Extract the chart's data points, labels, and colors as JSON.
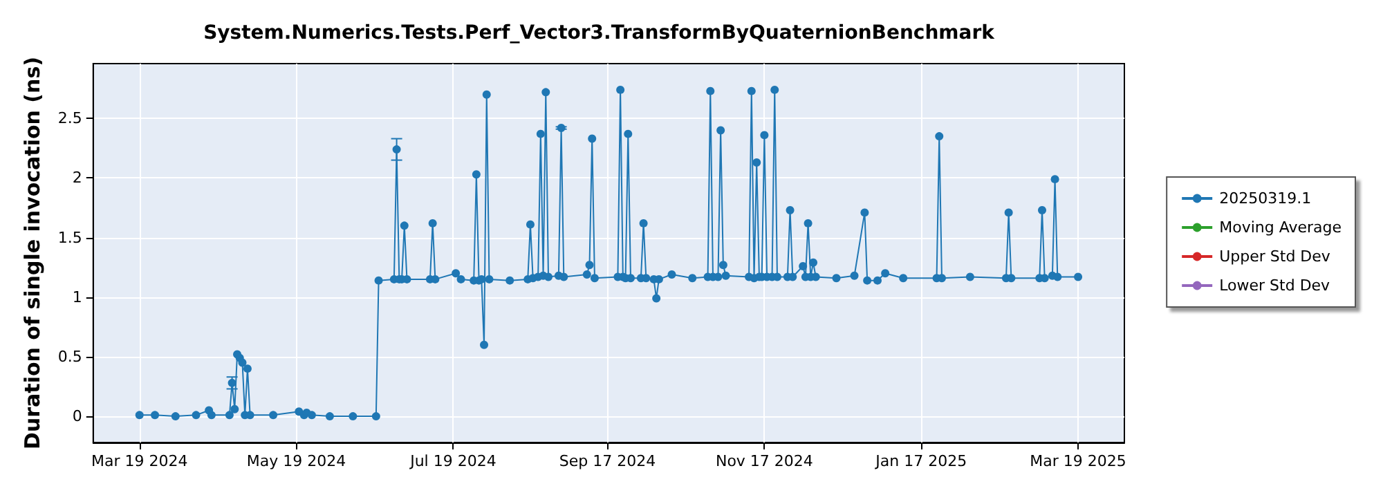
{
  "chart_data": {
    "type": "line",
    "title": "System.Numerics.Tests.Perf_Vector3.TransformByQuaternionBenchmark",
    "ylabel": "Duration of single invocation (ns)",
    "xlim": [
      "2024-03-01",
      "2025-04-06"
    ],
    "xticks": [
      {
        "value": "2024-03-19",
        "label": "Mar 19 2024"
      },
      {
        "value": "2024-05-19",
        "label": "May 19 2024"
      },
      {
        "value": "2024-07-19",
        "label": "Jul 19 2024"
      },
      {
        "value": "2024-09-17",
        "label": "Sep 17 2024"
      },
      {
        "value": "2024-11-17",
        "label": "Nov 17 2024"
      },
      {
        "value": "2025-01-17",
        "label": "Jan 17 2025"
      },
      {
        "value": "2025-03-19",
        "label": "Mar 19 2025"
      }
    ],
    "ylim": [
      -0.22,
      2.96
    ],
    "yticks": [
      0,
      0.5,
      1,
      1.5,
      2,
      2.5
    ],
    "grid": true,
    "legend": "right",
    "marker": "circle",
    "series": [
      {
        "name": "20250319.1",
        "color": "#1f77b4",
        "x": [
          "2024-03-19",
          "2024-03-25",
          "2024-04-02",
          "2024-04-10",
          "2024-04-15",
          "2024-04-16",
          "2024-04-23",
          "2024-04-24",
          "2024-04-25",
          "2024-04-26",
          "2024-04-27",
          "2024-04-28",
          "2024-04-29",
          "2024-04-30",
          "2024-05-01",
          "2024-05-10",
          "2024-05-20",
          "2024-05-22",
          "2024-05-23",
          "2024-05-25",
          "2024-06-01",
          "2024-06-10",
          "2024-06-19",
          "2024-06-20",
          "2024-06-26",
          "2024-06-27",
          "2024-06-28",
          "2024-06-29",
          "2024-06-30",
          "2024-07-01",
          "2024-07-10",
          "2024-07-11",
          "2024-07-12",
          "2024-07-20",
          "2024-07-22",
          "2024-07-27",
          "2024-07-28",
          "2024-07-29",
          "2024-07-30",
          "2024-07-31",
          "2024-08-01",
          "2024-08-02",
          "2024-08-10",
          "2024-08-17",
          "2024-08-18",
          "2024-08-19",
          "2024-08-21",
          "2024-08-22",
          "2024-08-23",
          "2024-08-24",
          "2024-08-25",
          "2024-08-29",
          "2024-08-30",
          "2024-08-31",
          "2024-09-09",
          "2024-09-10",
          "2024-09-11",
          "2024-09-12",
          "2024-09-21",
          "2024-09-22",
          "2024-09-23",
          "2024-09-24",
          "2024-09-25",
          "2024-09-26",
          "2024-09-30",
          "2024-10-01",
          "2024-10-02",
          "2024-10-05",
          "2024-10-06",
          "2024-10-07",
          "2024-10-12",
          "2024-10-20",
          "2024-10-26",
          "2024-10-27",
          "2024-10-28",
          "2024-10-30",
          "2024-10-31",
          "2024-11-01",
          "2024-11-02",
          "2024-11-11",
          "2024-11-12",
          "2024-11-13",
          "2024-11-14",
          "2024-11-15",
          "2024-11-16",
          "2024-11-17",
          "2024-11-18",
          "2024-11-20",
          "2024-11-21",
          "2024-11-22",
          "2024-11-26",
          "2024-11-27",
          "2024-11-28",
          "2024-12-02",
          "2024-12-03",
          "2024-12-04",
          "2024-12-05",
          "2024-12-06",
          "2024-12-07",
          "2024-12-15",
          "2024-12-22",
          "2024-12-26",
          "2024-12-27",
          "2024-12-31",
          "2025-01-03",
          "2025-01-10",
          "2025-01-23",
          "2025-01-24",
          "2025-01-25",
          "2025-02-05",
          "2025-02-19",
          "2025-02-20",
          "2025-02-21",
          "2025-03-04",
          "2025-03-05",
          "2025-03-06",
          "2025-03-09",
          "2025-03-10",
          "2025-03-11",
          "2025-03-19"
        ],
        "values": [
          0.01,
          0.01,
          0.0,
          0.01,
          0.05,
          0.01,
          0.01,
          0.28,
          0.06,
          0.52,
          0.49,
          0.45,
          0.01,
          0.4,
          0.01,
          0.01,
          0.04,
          0.01,
          0.03,
          0.01,
          0.0,
          0.0,
          0.0,
          1.14,
          1.15,
          2.24,
          1.15,
          1.15,
          1.6,
          1.15,
          1.15,
          1.62,
          1.15,
          1.2,
          1.15,
          1.14,
          2.03,
          1.14,
          1.15,
          0.6,
          2.7,
          1.15,
          1.14,
          1.15,
          1.61,
          1.16,
          1.17,
          2.37,
          1.18,
          2.72,
          1.17,
          1.18,
          2.42,
          1.17,
          1.19,
          1.27,
          2.33,
          1.16,
          1.17,
          2.74,
          1.17,
          1.16,
          2.37,
          1.16,
          1.16,
          1.62,
          1.16,
          1.15,
          0.99,
          1.15,
          1.19,
          1.16,
          1.17,
          2.73,
          1.17,
          1.17,
          2.4,
          1.27,
          1.18,
          1.17,
          2.73,
          1.16,
          2.13,
          1.17,
          1.17,
          2.36,
          1.17,
          1.17,
          2.74,
          1.17,
          1.17,
          1.73,
          1.17,
          1.26,
          1.17,
          1.62,
          1.17,
          1.29,
          1.17,
          1.16,
          1.18,
          1.71,
          1.14,
          1.14,
          1.2,
          1.16,
          1.16,
          2.35,
          1.16,
          1.17,
          1.16,
          1.71,
          1.16,
          1.16,
          1.73,
          1.16,
          1.18,
          1.99,
          1.17,
          1.17
        ],
        "errors": [
          null,
          null,
          null,
          null,
          null,
          null,
          null,
          0.05,
          null,
          null,
          null,
          null,
          null,
          null,
          null,
          null,
          null,
          null,
          null,
          null,
          null,
          null,
          null,
          null,
          null,
          [
            2.15,
            2.33
          ],
          null,
          null,
          null,
          null,
          null,
          null,
          null,
          null,
          null,
          null,
          null,
          null,
          null,
          null,
          null,
          null,
          null,
          null,
          null,
          null,
          null,
          null,
          null,
          null,
          null,
          null,
          0.01,
          null,
          null,
          null,
          null,
          null,
          null,
          null,
          null,
          null,
          null,
          null,
          null,
          null,
          null,
          null,
          null,
          null,
          null,
          null,
          null,
          null,
          null,
          null,
          null,
          null,
          null,
          null,
          null,
          null,
          null,
          null,
          null,
          null,
          null,
          null,
          null,
          null,
          null,
          null,
          null,
          null,
          null,
          null,
          null,
          null,
          null,
          null,
          null,
          null,
          null,
          null,
          null,
          null,
          null,
          null,
          null,
          null,
          null,
          null,
          null,
          null,
          null,
          null,
          null,
          null,
          null,
          null
        ]
      },
      {
        "name": "Moving Average",
        "color": "#2ca02c"
      },
      {
        "name": "Upper Std Dev",
        "color": "#d62728"
      },
      {
        "name": "Lower Std Dev",
        "color": "#9467bd"
      }
    ]
  }
}
